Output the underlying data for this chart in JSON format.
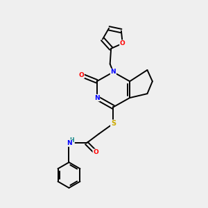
{
  "background_color": "#efefef",
  "bond_color": "#000000",
  "atom_colors": {
    "O": "#ff0000",
    "N": "#0000ff",
    "S": "#ccaa00",
    "H": "#008080",
    "C": "#000000"
  },
  "figsize": [
    3.0,
    3.0
  ],
  "dpi": 100
}
